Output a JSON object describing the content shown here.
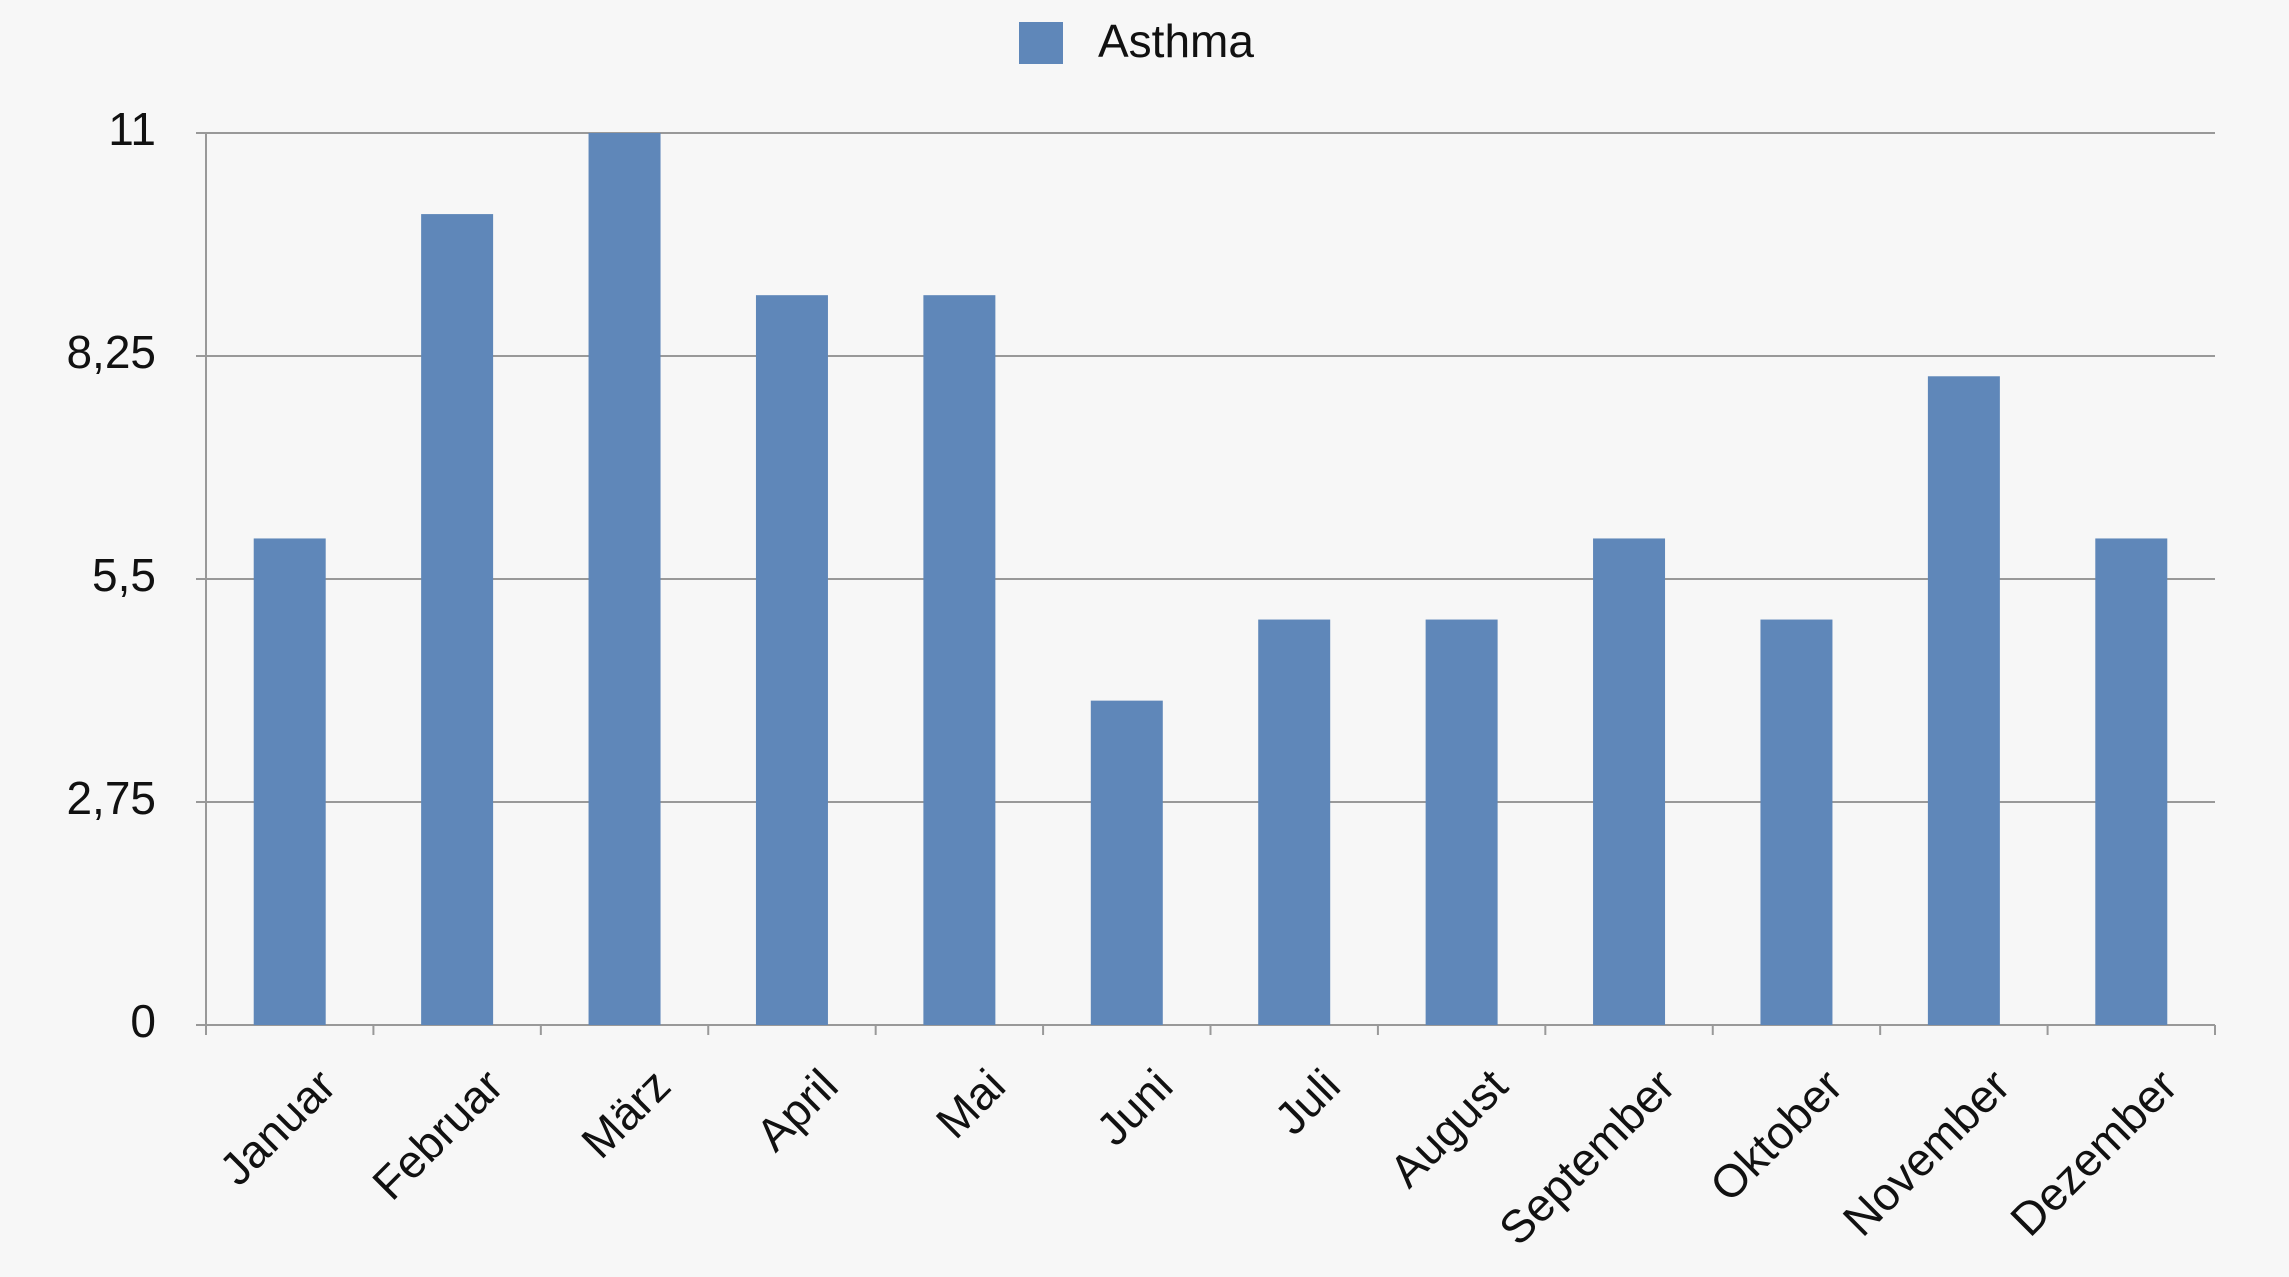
{
  "chart_data": {
    "type": "bar",
    "categories": [
      "Januar",
      "Februar",
      "März",
      "April",
      "Mai",
      "Juni",
      "Juli",
      "August",
      "September",
      "Oktober",
      "November",
      "Dezember"
    ],
    "series": [
      {
        "name": "Asthma",
        "color": "#5f87b9",
        "values": [
          6,
          10,
          11,
          9,
          9,
          4,
          5,
          5,
          6,
          5,
          8,
          6
        ]
      }
    ],
    "ylim": [
      0,
      11
    ],
    "yticks": [
      0,
      {
        "value": 2.75,
        "label": "2,75"
      },
      {
        "value": 5.5,
        "label": "5,5"
      },
      {
        "value": 8.25,
        "label": "8,25"
      },
      11
    ],
    "grid": true,
    "legend": "top"
  }
}
